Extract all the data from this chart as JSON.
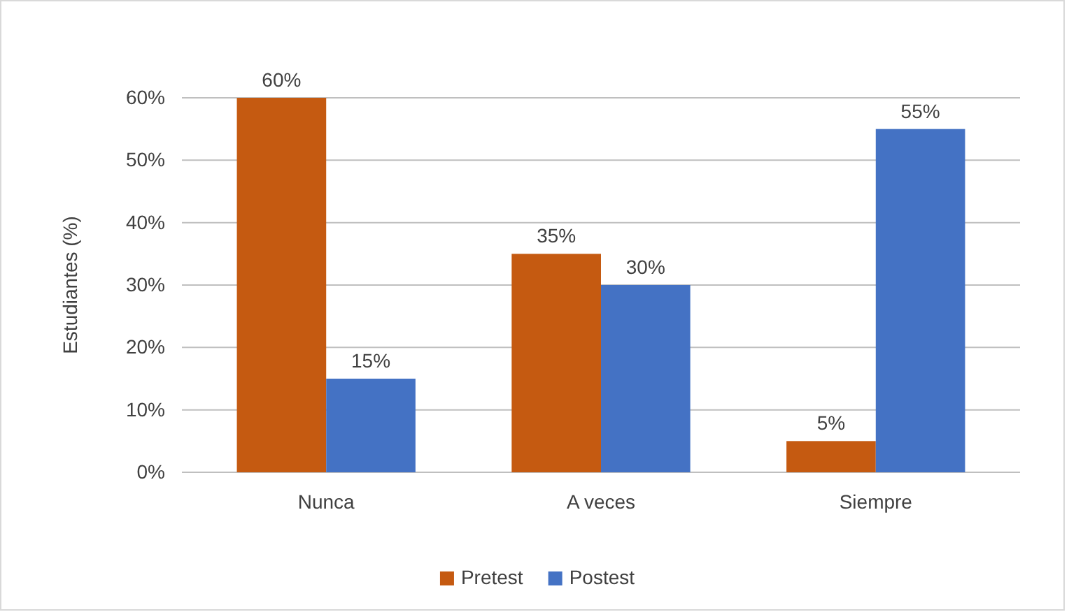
{
  "chart_data": {
    "type": "bar",
    "ylabel": "Estudiantes (%)",
    "categories": [
      "Nunca",
      "A veces",
      "Siempre"
    ],
    "series": [
      {
        "name": "Pretest",
        "color": "#c55a11",
        "values": [
          60,
          35,
          5
        ],
        "value_labels": [
          "60%",
          "35%",
          "5%"
        ]
      },
      {
        "name": "Postest",
        "color": "#4472c4",
        "values": [
          15,
          30,
          55
        ],
        "value_labels": [
          "15%",
          "30%",
          "55%"
        ]
      }
    ],
    "ylim": [
      0,
      60
    ],
    "yticks": [
      {
        "value": 0,
        "label": "0%"
      },
      {
        "value": 10,
        "label": "10%"
      },
      {
        "value": 20,
        "label": "20%"
      },
      {
        "value": 30,
        "label": "30%"
      },
      {
        "value": 40,
        "label": "40%"
      },
      {
        "value": 50,
        "label": "50%"
      },
      {
        "value": 60,
        "label": "60%"
      }
    ],
    "grid": "y",
    "legend": "bottom"
  }
}
